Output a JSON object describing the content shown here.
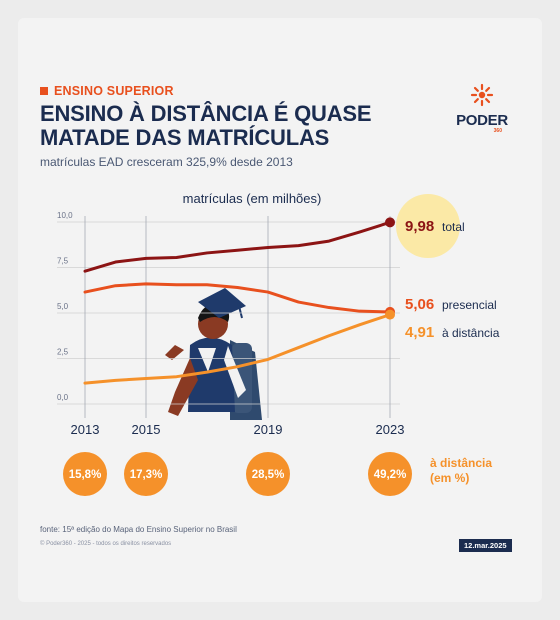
{
  "section_tag": "ENSINO SUPERIOR",
  "title": "ENSINO À DISTÂNCIA É QUASE MATADE DAS MATRÍCULAS",
  "subtitle": "matrículas EAD cresceram 325,9% desde 2013",
  "logo": {
    "name": "PODER",
    "sub": "360"
  },
  "chart_data": {
    "type": "line",
    "title": "matrículas (em milhões)",
    "x": [
      2013,
      2014,
      2015,
      2016,
      2017,
      2018,
      2019,
      2020,
      2021,
      2022,
      2023
    ],
    "xticks": [
      "2013",
      "2015",
      "2019",
      "2023"
    ],
    "yticks": [
      "0,0",
      "2,5",
      "5,0",
      "7,5",
      "10,0"
    ],
    "ylim": [
      0,
      10
    ],
    "series": [
      {
        "name": "total",
        "color": "#8c1414",
        "values": [
          7.3,
          7.8,
          8.0,
          8.05,
          8.3,
          8.45,
          8.6,
          8.7,
          8.95,
          9.45,
          9.98
        ]
      },
      {
        "name": "presencial",
        "color": "#e8501e",
        "values": [
          6.15,
          6.5,
          6.6,
          6.55,
          6.55,
          6.4,
          6.15,
          5.6,
          5.3,
          5.1,
          5.06
        ]
      },
      {
        "name": "à distância",
        "color": "#f5912a",
        "values": [
          1.15,
          1.3,
          1.4,
          1.5,
          1.75,
          2.05,
          2.45,
          3.1,
          3.75,
          4.35,
          4.91
        ]
      }
    ],
    "end_labels": [
      {
        "value": "9,98",
        "label": "total"
      },
      {
        "value": "5,06",
        "label": "presencial"
      },
      {
        "value": "4,91",
        "label": "à distância"
      }
    ],
    "percent_bubbles": {
      "years": [
        2013,
        2015,
        2019,
        2023
      ],
      "labels": [
        "15,8%",
        "17,3%",
        "28,5%",
        "49,2%"
      ],
      "legend": "à distância (em %)"
    }
  },
  "footer": {
    "source": "fonte: 15ª edição do Mapa do Ensino Superior no Brasil",
    "copyright": "© Poder360 - 2025 - todos os direitos reservados",
    "date": "12.mar.2025"
  },
  "colors": {
    "navy": "#1b2c4f",
    "accent": "#e8501e",
    "orange": "#f5912a",
    "dark_red": "#8c1414",
    "highlight": "#fbe9a6"
  }
}
